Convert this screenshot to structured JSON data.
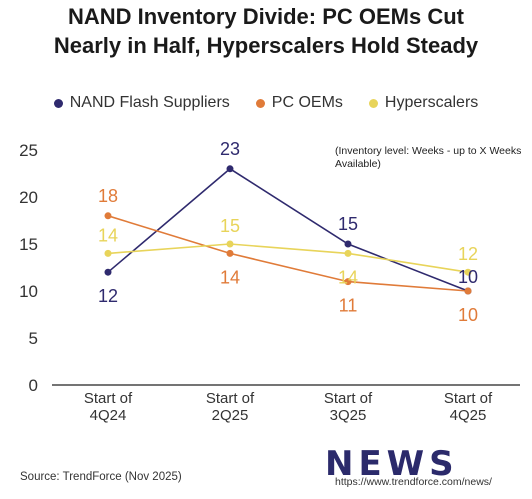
{
  "header": {
    "title_line1": "NAND Inventory Divide: PC OEMs Cut",
    "title_line2": "Nearly in Half, Hyperscalers Hold Steady"
  },
  "footer": {
    "source": "Source: TrendForce (Nov 2025)",
    "brand": "NEWS",
    "url": "https://www.trendforce.com/news/"
  },
  "chart_data": {
    "type": "line",
    "title": "NAND Inventory Divide: PC OEMs Cut Nearly in Half, Hyperscalers Hold Steady",
    "annotation": "(Inventory level: Weeks - up to X Weeks Available)",
    "categories": [
      "Start of 4Q24",
      "Start of 2Q25",
      "Start of 3Q25",
      "Start of 4Q25"
    ],
    "ylim": [
      0,
      25
    ],
    "yticks": [
      0,
      5,
      10,
      15,
      20,
      25
    ],
    "grid": false,
    "legend_position": "top",
    "series": [
      {
        "name": "NAND Flash Suppliers",
        "color": "#2f2a6e",
        "values": [
          12,
          23,
          15,
          10
        ]
      },
      {
        "name": "PC OEMs",
        "color": "#e07b39",
        "values": [
          18,
          14,
          11,
          10
        ]
      },
      {
        "name": "Hyperscalers",
        "color": "#e8d45a",
        "values": [
          14,
          15,
          14,
          12
        ]
      }
    ]
  }
}
